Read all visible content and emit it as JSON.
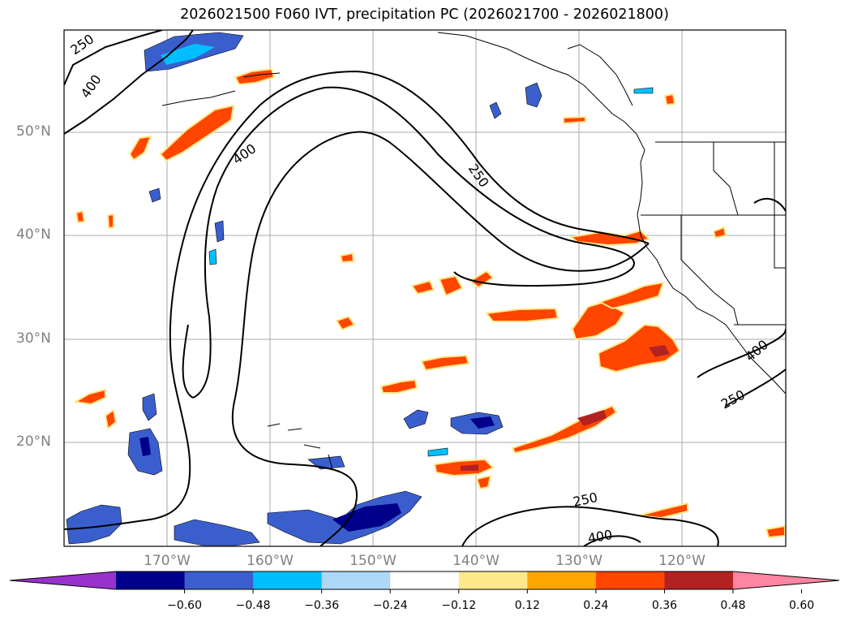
{
  "title": "2026021500 F060 IVT, precipitation PC (2026021700 - 2026021800)",
  "lat_labels": [
    "50°N",
    "40°N",
    "30°N",
    "20°N"
  ],
  "lon_labels": [
    "170°W",
    "160°W",
    "150°W",
    "140°W",
    "130°W",
    "120°W"
  ],
  "contour_labels": [
    "250",
    "400",
    "400",
    "250",
    "250",
    "400",
    "400",
    "250"
  ],
  "colorbar": {
    "ticks": [
      "−0.60",
      "−0.48",
      "−0.36",
      "−0.24",
      "−0.12",
      "0.12",
      "0.24",
      "0.36",
      "0.48",
      "0.60"
    ],
    "colors": [
      "#9932cc",
      "#00008b",
      "#3a5fcd",
      "#00bfff",
      "#add8f8",
      "#ffffff",
      "#fde98a",
      "#ffa500",
      "#ff4500",
      "#b22222",
      "#ff85a2"
    ]
  },
  "colors": {
    "grid": "#aaaaaa",
    "contour": "#000000",
    "coast": "#000000"
  }
}
